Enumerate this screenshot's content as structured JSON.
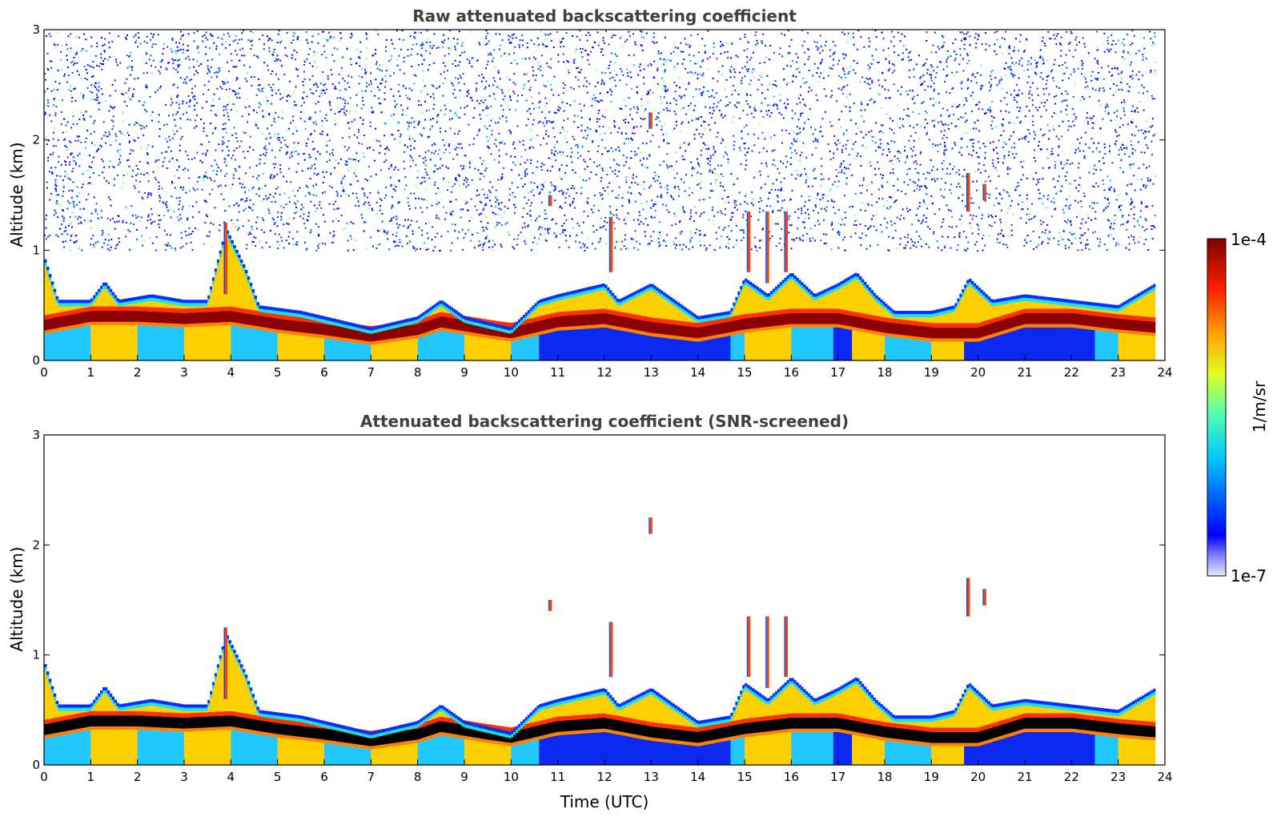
{
  "chart_data": [
    {
      "type": "heatmap",
      "title": "Raw attenuated backscattering coefficient",
      "xlabel": "",
      "ylabel": "Altitude (km)",
      "xlim": [
        0,
        24
      ],
      "ylim": [
        0,
        3
      ],
      "x_ticks": [
        "0",
        "1",
        "2",
        "3",
        "4",
        "5",
        "6",
        "7",
        "8",
        "9",
        "10",
        "11",
        "12",
        "13",
        "14",
        "15",
        "16",
        "17",
        "18",
        "19",
        "20",
        "21",
        "22",
        "23",
        "24"
      ],
      "y_ticks": [
        "0",
        "1",
        "2",
        "3"
      ],
      "data_end_hour": 23.8,
      "noise_top_km": 3.0,
      "boundary_layer_top_km": [
        [
          0,
          0.95
        ],
        [
          0.3,
          0.55
        ],
        [
          1.0,
          0.55
        ],
        [
          1.3,
          0.72
        ],
        [
          1.6,
          0.55
        ],
        [
          2.3,
          0.6
        ],
        [
          3.0,
          0.55
        ],
        [
          3.5,
          0.55
        ],
        [
          3.9,
          1.2
        ],
        [
          4.3,
          0.85
        ],
        [
          4.6,
          0.5
        ],
        [
          5.5,
          0.45
        ],
        [
          6.5,
          0.35
        ],
        [
          7.0,
          0.3
        ],
        [
          8.0,
          0.4
        ],
        [
          8.5,
          0.55
        ],
        [
          9.0,
          0.4
        ],
        [
          9.5,
          0.35
        ],
        [
          10.0,
          0.3
        ],
        [
          10.6,
          0.55
        ],
        [
          11.0,
          0.6
        ],
        [
          12.0,
          0.7
        ],
        [
          12.3,
          0.55
        ],
        [
          13.0,
          0.7
        ],
        [
          13.5,
          0.55
        ],
        [
          14.0,
          0.4
        ],
        [
          14.7,
          0.45
        ],
        [
          15.0,
          0.75
        ],
        [
          15.5,
          0.6
        ],
        [
          16.0,
          0.8
        ],
        [
          16.5,
          0.6
        ],
        [
          17.0,
          0.7
        ],
        [
          17.4,
          0.8
        ],
        [
          17.8,
          0.6
        ],
        [
          18.2,
          0.45
        ],
        [
          19.0,
          0.45
        ],
        [
          19.5,
          0.5
        ],
        [
          19.8,
          0.75
        ],
        [
          20.3,
          0.55
        ],
        [
          21.0,
          0.6
        ],
        [
          22.0,
          0.55
        ],
        [
          23.0,
          0.5
        ],
        [
          23.8,
          0.7
        ]
      ],
      "dense_layer_center_km": [
        [
          0,
          0.32
        ],
        [
          1.0,
          0.4
        ],
        [
          2.0,
          0.4
        ],
        [
          3.0,
          0.38
        ],
        [
          4.0,
          0.4
        ],
        [
          5.0,
          0.33
        ],
        [
          6.0,
          0.28
        ],
        [
          7.0,
          0.22
        ],
        [
          8.0,
          0.28
        ],
        [
          8.5,
          0.35
        ],
        [
          9.5,
          0.28
        ],
        [
          10.0,
          0.25
        ],
        [
          11.0,
          0.35
        ],
        [
          12.0,
          0.38
        ],
        [
          13.0,
          0.3
        ],
        [
          14.0,
          0.25
        ],
        [
          15.0,
          0.33
        ],
        [
          16.0,
          0.38
        ],
        [
          17.0,
          0.38
        ],
        [
          18.0,
          0.3
        ],
        [
          19.0,
          0.25
        ],
        [
          20.0,
          0.25
        ],
        [
          21.0,
          0.38
        ],
        [
          22.0,
          0.38
        ],
        [
          23.0,
          0.33
        ],
        [
          23.8,
          0.3
        ]
      ],
      "elevated_features": [
        {
          "hour": 3.9,
          "bottom_km": 0.6,
          "top_km": 1.25
        },
        {
          "hour": 10.85,
          "bottom_km": 1.4,
          "top_km": 1.5
        },
        {
          "hour": 12.15,
          "bottom_km": 0.8,
          "top_km": 1.3
        },
        {
          "hour": 13.0,
          "bottom_km": 2.1,
          "top_km": 2.25
        },
        {
          "hour": 15.1,
          "bottom_km": 0.8,
          "top_km": 1.35
        },
        {
          "hour": 15.5,
          "bottom_km": 0.7,
          "top_km": 1.35
        },
        {
          "hour": 15.9,
          "bottom_km": 0.8,
          "top_km": 1.35
        },
        {
          "hour": 19.8,
          "bottom_km": 1.35,
          "top_km": 1.7
        },
        {
          "hour": 20.15,
          "bottom_km": 1.45,
          "top_km": 1.6
        }
      ]
    },
    {
      "type": "heatmap",
      "title": "Attenuated backscattering coefficient (SNR-screened)",
      "xlabel": "Time (UTC)",
      "ylabel": "Altitude (km)",
      "xlim": [
        0,
        24
      ],
      "ylim": [
        0,
        3
      ],
      "x_ticks": [
        "0",
        "1",
        "2",
        "3",
        "4",
        "5",
        "6",
        "7",
        "8",
        "9",
        "10",
        "11",
        "12",
        "13",
        "14",
        "15",
        "16",
        "17",
        "18",
        "19",
        "20",
        "21",
        "22",
        "23",
        "24"
      ],
      "y_ticks": [
        "0",
        "1",
        "2",
        "3"
      ],
      "data_end_hour": 23.8,
      "saturated_core_color": "#000000",
      "same_profiles_as_panel": 0
    }
  ],
  "colorbar": {
    "label": "1/m/sr",
    "max_label": "1e-4",
    "min_label": "1e-7",
    "scale": "log",
    "colors": [
      "#e6e6f5",
      "#0000ff",
      "#00c8ff",
      "#50ffb0",
      "#e0ff20",
      "#ffa000",
      "#ff2000",
      "#800000"
    ]
  }
}
